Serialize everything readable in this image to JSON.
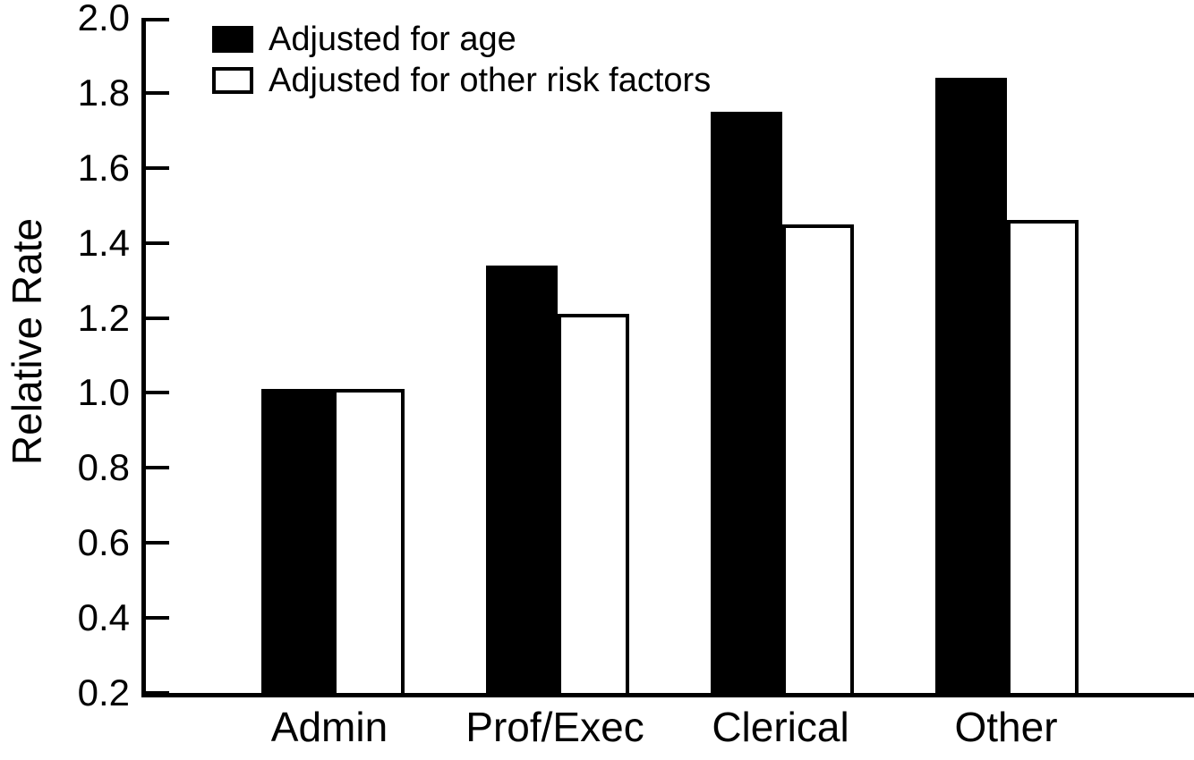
{
  "colors": {
    "foreground": "#000000",
    "background": "#ffffff",
    "bar_filled": "#000000",
    "bar_outline": "#ffffff"
  },
  "chart_data": {
    "type": "bar",
    "title": "",
    "xlabel": "",
    "ylabel": "Relative Rate",
    "categories": [
      "Admin",
      "Prof/Exec",
      "Clerical",
      "Other"
    ],
    "series": [
      {
        "name": "Adjusted for age",
        "fill": "black",
        "values": [
          1.01,
          1.34,
          1.75,
          1.84
        ]
      },
      {
        "name": "Adjusted for other risk factors",
        "fill": "white",
        "values": [
          1.01,
          1.21,
          1.45,
          1.46
        ]
      }
    ],
    "ylim": [
      0.2,
      2.0
    ],
    "y_ticks": [
      2.0,
      1.8,
      1.6,
      1.4,
      1.2,
      1.0,
      0.8,
      0.6,
      0.4,
      0.2
    ],
    "y_tick_labels": [
      "2.0",
      "1.8",
      "1.6",
      "1.4",
      "1.2",
      "1.0",
      "0.8",
      "0.6",
      "0.4",
      "0.2"
    ],
    "grid": "off",
    "legend_position": "top-left"
  }
}
